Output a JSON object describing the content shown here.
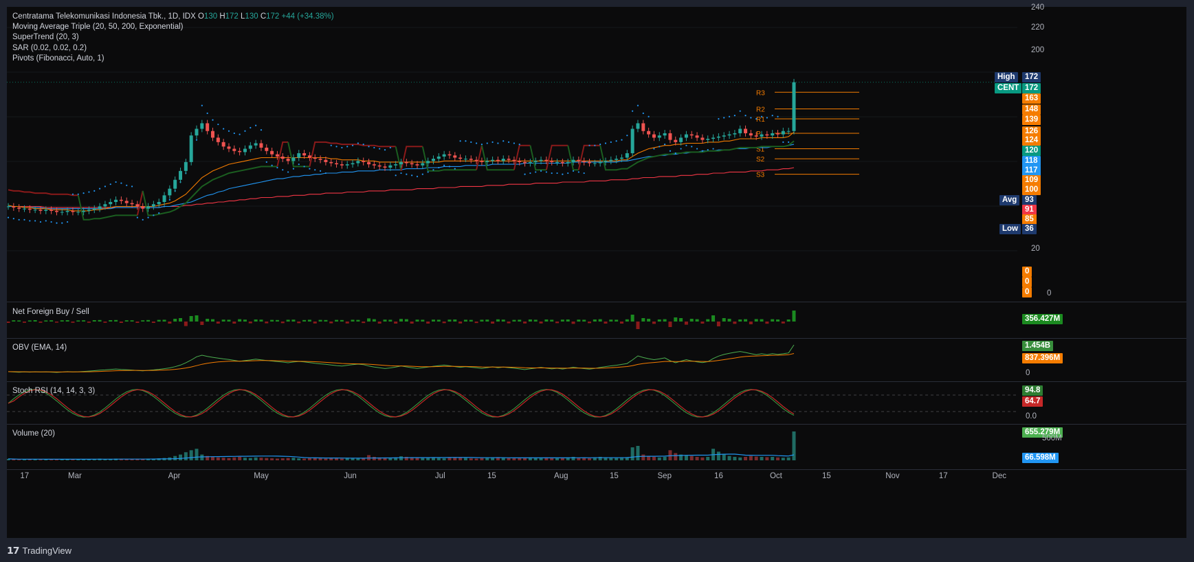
{
  "header": {
    "symbol_line": "Centratama Telekomunikasi Indonesia Tbk., 1D, IDX",
    "o_label": "O",
    "o_val": "130",
    "h_label": "H",
    "h_val": "172",
    "l_label": "L",
    "l_val": "130",
    "c_label": "C",
    "c_val": "172",
    "change": "+44 (+34.38%)"
  },
  "indicators": [
    "Moving Average Triple (20, 50, 200, Exponential)",
    "SuperTrend (20, 3)",
    "SAR (0.02, 0.02, 0.2)",
    "Pivots (Fibonacci, Auto, 1)"
  ],
  "pivots": [
    {
      "label": "R3",
      "value": 163
    },
    {
      "label": "R2",
      "value": 148
    },
    {
      "label": "R1",
      "value": 139
    },
    {
      "label": "P",
      "value": 126
    },
    {
      "label": "S1",
      "value": 112
    },
    {
      "label": "S2",
      "value": 103
    },
    {
      "label": "S3",
      "value": 89
    }
  ],
  "price_axis": {
    "ticks": [
      "240",
      "220",
      "200",
      "20"
    ],
    "badges": [
      {
        "text": "High",
        "value": "172",
        "label_color": "#1e3a6e",
        "color": "#1e3a6e",
        "price": 172.5
      },
      {
        "text": "CENT",
        "value": "172",
        "label_color": "#089981",
        "color": "#089981",
        "price": 162
      },
      {
        "text": "",
        "value": "163",
        "color": "#f57c00",
        "price": 152
      },
      {
        "text": "",
        "value": "148",
        "color": "#f57c00",
        "price": 141
      },
      {
        "text": "",
        "value": "139",
        "color": "#f57c00",
        "price": 131.5
      },
      {
        "text": "",
        "value": "126",
        "color": "#f57c00",
        "price": 120
      },
      {
        "text": "",
        "value": "124",
        "color": "#f57c00",
        "price": 111
      },
      {
        "text": "",
        "value": "120",
        "color": "#089981",
        "price": 101
      },
      {
        "text": "",
        "value": "118",
        "color": "#2196f3",
        "price": 91.5
      },
      {
        "text": "",
        "value": "117",
        "color": "#2196f3",
        "price": 82
      },
      {
        "text": "",
        "value": "109",
        "color": "#f57c00",
        "price": 72.5
      },
      {
        "text": "",
        "value": "100",
        "color": "#f57c00",
        "price": 63
      },
      {
        "text": "Avg",
        "value": "93",
        "label_color": "#1e3a6e",
        "color": "#1e3a6e",
        "price": 53.5
      },
      {
        "text": "",
        "value": "91",
        "color": "#f23645",
        "price": 44
      },
      {
        "text": "",
        "value": "85",
        "color": "#f57c00",
        "price": 34.5
      },
      {
        "text": "Low",
        "value": "36",
        "label_color": "#1e3a6e",
        "color": "#1e3a6e",
        "price": 25
      }
    ],
    "zero_badges": [
      "0",
      "0",
      "0"
    ],
    "zero_tick": "0"
  },
  "panes": {
    "net_foreign": {
      "title": "Net Foreign Buy / Sell",
      "value": "356.427M",
      "color": "#1b8a20"
    },
    "obv": {
      "title": "OBV (EMA, 14)",
      "value1": "1.454B",
      "color1": "#388e3c",
      "value2": "837.396M",
      "color2": "#f57c00",
      "tick": "0"
    },
    "stoch": {
      "title": "Stoch RSI (14, 14, 3, 3)",
      "k": "94.8",
      "k_color": "#2e7d32",
      "d": "64.7",
      "d_color": "#c62828",
      "tick": "0.0"
    },
    "volume": {
      "title": "Volume (20)",
      "value": "655.279M",
      "color": "#4caf50",
      "tick": "500M",
      "ma": "66.598M",
      "ma_color": "#2196f3"
    }
  },
  "dates": [
    {
      "label": "17",
      "pos": 0.012
    },
    {
      "label": "Mar",
      "pos": 0.055
    },
    {
      "label": "Apr",
      "pos": 0.145
    },
    {
      "label": "May",
      "pos": 0.222
    },
    {
      "label": "Jun",
      "pos": 0.303
    },
    {
      "label": "Jul",
      "pos": 0.385
    },
    {
      "label": "15",
      "pos": 0.432
    },
    {
      "label": "Aug",
      "pos": 0.492
    },
    {
      "label": "15",
      "pos": 0.542
    },
    {
      "label": "Sep",
      "pos": 0.585
    },
    {
      "label": "16",
      "pos": 0.636
    },
    {
      "label": "Oct",
      "pos": 0.686
    },
    {
      "label": "15",
      "pos": 0.733
    },
    {
      "label": "Nov",
      "pos": 0.79
    },
    {
      "label": "17",
      "pos": 0.838
    },
    {
      "label": "Dec",
      "pos": 0.886
    }
  ],
  "colors": {
    "up": "#26a69a",
    "down": "#ef5350",
    "ema20": "#f57c00",
    "ema50": "#2196f3",
    "ema200": "#f23645",
    "supertrend_up": "#1b5e20",
    "supertrend_down": "#8b1a1a",
    "sar": "#2196f3",
    "pivot": "#f57c00"
  },
  "chart_data": {
    "type": "candlestick",
    "symbol": "CENT",
    "ylim": [
      20,
      240
    ],
    "last_close": 172,
    "high": 172,
    "low": 36,
    "avg": 93,
    "closes": [
      60,
      59,
      58,
      58,
      57,
      57,
      56,
      57,
      56,
      55,
      55,
      56,
      55,
      55,
      56,
      57,
      58,
      60,
      62,
      64,
      66,
      65,
      63,
      62,
      60,
      58,
      60,
      62,
      64,
      70,
      76,
      84,
      92,
      100,
      124,
      130,
      135,
      128,
      122,
      118,
      114,
      112,
      110,
      109,
      112,
      115,
      117,
      113,
      110,
      107,
      105,
      103,
      101,
      104,
      108,
      106,
      104,
      103,
      102,
      100,
      99,
      98,
      97,
      98,
      99,
      101,
      100,
      98,
      97,
      96,
      95,
      97,
      98,
      100,
      99,
      98,
      97,
      99,
      101,
      103,
      105,
      107,
      106,
      104,
      103,
      103,
      102,
      101,
      100,
      101,
      102,
      101,
      103,
      102,
      101,
      100,
      99,
      100,
      101,
      102,
      101,
      100,
      100,
      99,
      100,
      102,
      101,
      100,
      99,
      99,
      100,
      101,
      102,
      103,
      104,
      108,
      130,
      135,
      128,
      125,
      122,
      124,
      126,
      120,
      118,
      122,
      125,
      124,
      122,
      120,
      121,
      122,
      123,
      124,
      125,
      126,
      130,
      126,
      124,
      123,
      125,
      124,
      126,
      125,
      128,
      128,
      172
    ],
    "ema20": [
      61,
      60,
      60,
      59,
      59,
      58,
      58,
      58,
      57,
      57,
      57,
      57,
      56,
      56,
      56,
      56,
      57,
      57,
      58,
      59,
      60,
      60,
      60,
      60,
      60,
      60,
      60,
      60,
      61,
      62,
      63,
      65,
      68,
      71,
      76,
      81,
      86,
      89,
      92,
      94,
      96,
      98,
      99,
      100,
      101,
      102,
      103,
      104,
      104,
      104,
      104,
      104,
      104,
      104,
      104,
      104,
      104,
      104,
      104,
      104,
      103,
      103,
      102,
      102,
      102,
      102,
      101,
      101,
      101,
      100,
      100,
      100,
      100,
      100,
      100,
      100,
      100,
      100,
      100,
      100,
      100,
      101,
      101,
      101,
      101,
      101,
      101,
      101,
      101,
      101,
      101,
      101,
      101,
      101,
      101,
      101,
      101,
      101,
      101,
      101,
      101,
      101,
      101,
      101,
      101,
      101,
      101,
      101,
      101,
      101,
      101,
      101,
      101,
      101,
      102,
      102,
      105,
      108,
      110,
      112,
      113,
      114,
      115,
      115,
      116,
      116,
      117,
      117,
      117,
      117,
      118,
      118,
      118,
      119,
      119,
      120,
      121,
      121,
      121,
      121,
      122,
      122,
      122,
      122,
      122,
      123,
      127
    ],
    "ema50": [
      60,
      60,
      60,
      59,
      59,
      59,
      59,
      58,
      58,
      58,
      58,
      58,
      58,
      58,
      58,
      58,
      58,
      58,
      58,
      58,
      59,
      59,
      59,
      59,
      59,
      59,
      59,
      59,
      59,
      60,
      60,
      61,
      62,
      63,
      64,
      66,
      68,
      70,
      71,
      73,
      74,
      76,
      77,
      78,
      79,
      80,
      81,
      82,
      83,
      84,
      85,
      85,
      86,
      87,
      87,
      88,
      88,
      89,
      89,
      90,
      90,
      90,
      91,
      91,
      91,
      92,
      92,
      92,
      92,
      93,
      93,
      93,
      93,
      93,
      94,
      94,
      94,
      94,
      95,
      95,
      95,
      96,
      96,
      96,
      96,
      97,
      97,
      97,
      97,
      97,
      98,
      98,
      98,
      98,
      98,
      98,
      99,
      99,
      99,
      99,
      99,
      99,
      99,
      99,
      99,
      100,
      100,
      100,
      100,
      100,
      100,
      100,
      100,
      100,
      101,
      101,
      102,
      103,
      104,
      105,
      105,
      106,
      106,
      107,
      107,
      108,
      108,
      109,
      109,
      110,
      110,
      110,
      111,
      111,
      111,
      112,
      112,
      112,
      113,
      113,
      113,
      113,
      114,
      114,
      114,
      115,
      116
    ],
    "ema200": [
      60,
      60,
      60,
      60,
      60,
      60,
      60,
      59,
      59,
      59,
      59,
      59,
      59,
      59,
      59,
      59,
      59,
      59,
      59,
      59,
      59,
      59,
      59,
      59,
      59,
      59,
      59,
      59,
      59,
      60,
      60,
      60,
      60,
      61,
      61,
      62,
      62,
      63,
      63,
      64,
      64,
      65,
      65,
      66,
      66,
      67,
      67,
      68,
      68,
      68,
      69,
      69,
      69,
      70,
      70,
      70,
      71,
      71,
      71,
      72,
      72,
      72,
      72,
      73,
      73,
      73,
      73,
      74,
      74,
      74,
      74,
      75,
      75,
      75,
      75,
      75,
      76,
      76,
      76,
      76,
      77,
      77,
      77,
      77,
      78,
      78,
      78,
      78,
      78,
      79,
      79,
      79,
      79,
      80,
      80,
      80,
      80,
      80,
      81,
      81,
      81,
      81,
      81,
      82,
      82,
      82,
      82,
      82,
      83,
      83,
      83,
      83,
      84,
      84,
      84,
      84,
      85,
      85,
      86,
      86,
      86,
      87,
      87,
      87,
      87,
      88,
      88,
      88,
      89,
      89,
      89,
      90,
      90,
      90,
      91,
      91,
      91,
      91,
      92,
      92,
      92,
      93,
      93,
      93,
      94,
      94,
      95
    ],
    "volume": [
      5,
      4,
      3,
      4,
      3,
      5,
      4,
      3,
      4,
      3,
      4,
      5,
      4,
      3,
      4,
      4,
      5,
      6,
      4,
      5,
      6,
      5,
      4,
      4,
      5,
      4,
      6,
      5,
      7,
      8,
      10,
      15,
      20,
      28,
      35,
      40,
      20,
      15,
      12,
      10,
      9,
      8,
      10,
      12,
      9,
      8,
      10,
      9,
      8,
      7,
      6,
      7,
      8,
      9,
      7,
      6,
      8,
      9,
      7,
      6,
      8,
      7,
      6,
      9,
      8,
      7,
      6,
      18,
      12,
      10,
      9,
      8,
      10,
      14,
      12,
      10,
      9,
      8,
      10,
      9,
      8,
      7,
      9,
      10,
      9,
      8,
      7,
      6,
      8,
      9,
      10,
      11,
      9,
      8,
      7,
      8,
      9,
      10,
      8,
      9,
      10,
      8,
      7,
      9,
      10,
      12,
      9,
      8,
      7,
      10,
      12,
      10,
      9,
      8,
      10,
      11,
      45,
      50,
      20,
      15,
      12,
      10,
      12,
      35,
      25,
      20,
      18,
      15,
      12,
      10,
      12,
      40,
      30,
      20,
      15,
      12,
      10,
      12,
      15,
      13,
      12,
      11,
      12,
      10,
      9,
      10,
      100
    ]
  }
}
